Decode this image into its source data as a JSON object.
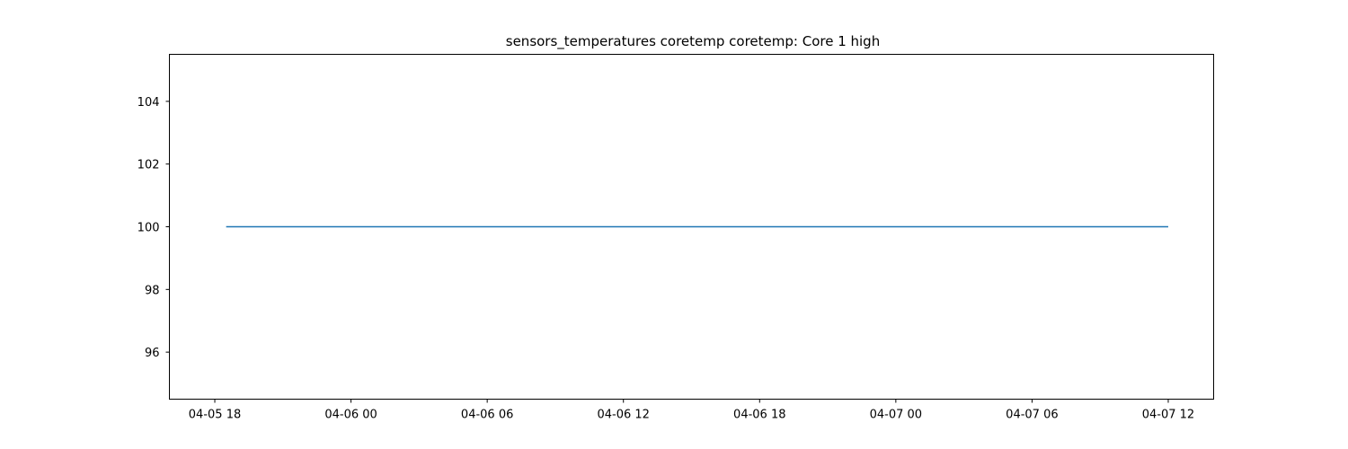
{
  "chart_data": {
    "type": "line",
    "title": "sensors_temperatures coretemp coretemp: Core 1 high",
    "xlabel": "",
    "ylabel": "",
    "x_ticks": [
      "04-05 18",
      "04-06 00",
      "04-06 06",
      "04-06 12",
      "04-06 18",
      "04-07 00",
      "04-07 06",
      "04-07 12"
    ],
    "y_ticks": [
      "96",
      "98",
      "100",
      "102",
      "104"
    ],
    "xlim": [
      "2024-04-05 16:00",
      "2024-04-07 14:00"
    ],
    "ylim": [
      94.5,
      105.5
    ],
    "grid": false,
    "series": [
      {
        "color": "#1f77b4",
        "x": [
          "2024-04-05 18:30",
          "2024-04-07 12:00"
        ],
        "values": [
          100,
          100
        ]
      }
    ]
  }
}
